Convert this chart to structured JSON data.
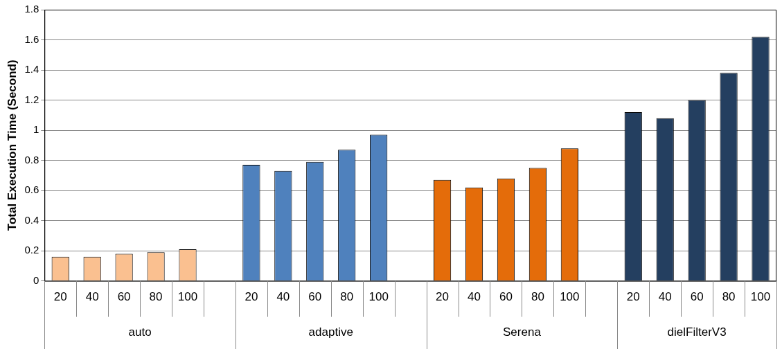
{
  "chart_data": {
    "type": "bar",
    "ylabel": "Total Execution Time (Second)",
    "categories": [
      "20",
      "40",
      "60",
      "80",
      "100",
      null,
      "20",
      "40",
      "60",
      "80",
      "100",
      null,
      "20",
      "40",
      "60",
      "80",
      "100",
      null,
      "20",
      "40",
      "60",
      "80",
      "100"
    ],
    "series": [
      {
        "color": "#fac090",
        "values": [
          0.16,
          0.16,
          0.18,
          0.19,
          0.21,
          null,
          null,
          null,
          null,
          null,
          null,
          null,
          null,
          null,
          null,
          null,
          null,
          null,
          null,
          null,
          null,
          null,
          null
        ]
      },
      {
        "color": "#4f81bd",
        "values": [
          null,
          null,
          null,
          null,
          null,
          null,
          0.77,
          0.73,
          0.79,
          0.87,
          0.97,
          null,
          null,
          null,
          null,
          null,
          null,
          null,
          null,
          null,
          null,
          null,
          null
        ]
      },
      {
        "color": "#e46c0a",
        "values": [
          null,
          null,
          null,
          null,
          null,
          null,
          null,
          null,
          null,
          null,
          null,
          null,
          0.67,
          0.62,
          0.68,
          0.75,
          0.88,
          null,
          null,
          null,
          null,
          null,
          null
        ]
      },
      {
        "color": "#243f60",
        "values": [
          null,
          null,
          null,
          null,
          null,
          null,
          null,
          null,
          null,
          null,
          null,
          null,
          null,
          null,
          null,
          null,
          null,
          null,
          1.12,
          1.08,
          1.2,
          1.38,
          1.62
        ]
      }
    ],
    "ylim": [
      0,
      1.8
    ],
    "yticks": [
      0,
      0.2,
      0.4,
      0.6,
      0.8,
      1,
      1.2,
      1.4,
      1.6,
      1.8
    ],
    "grid": "y",
    "legend": false,
    "annotations": [
      "auto",
      "adaptive",
      "Serena",
      "dielFilterV3"
    ]
  }
}
